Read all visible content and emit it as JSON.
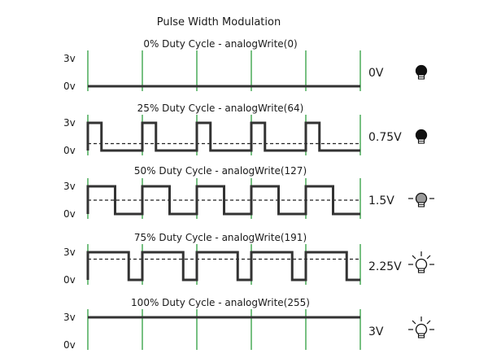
{
  "title": "Pulse Width Modulation",
  "panels": [
    {
      "title": "0% Duty Cycle - analogWrite(0)",
      "duty": 0,
      "voltage": "0V",
      "y_high": "3v",
      "y_low": "0v",
      "bulb": "bulb-off-icon"
    },
    {
      "title": "25% Duty Cycle - analogWrite(64)",
      "duty": 0.25,
      "voltage": "0.75V",
      "y_high": "3v",
      "y_low": "0v",
      "bulb": "bulb-off-icon"
    },
    {
      "title": "50% Duty Cycle - analogWrite(127)",
      "duty": 0.5,
      "voltage": "1.5V",
      "y_high": "3v",
      "y_low": "0v",
      "bulb": "bulb-dim-icon"
    },
    {
      "title": "75% Duty Cycle - analogWrite(191)",
      "duty": 0.75,
      "voltage": "2.25V",
      "y_high": "3v",
      "y_low": "0v",
      "bulb": "bulb-bright-icon"
    },
    {
      "title": "100% Duty Cycle - analogWrite(255)",
      "duty": 1,
      "voltage": "3V",
      "y_high": "3v",
      "y_low": "0v",
      "bulb": "bulb-bright-icon"
    }
  ],
  "periods_shown": 5,
  "colors": {
    "signal": "#333333",
    "period_marker": "#2e9e3e",
    "average_line": "#222222",
    "bulb_off": "#111111",
    "bulb_dim": "#9a9a9a",
    "bulb_bright": "#ffffff"
  }
}
